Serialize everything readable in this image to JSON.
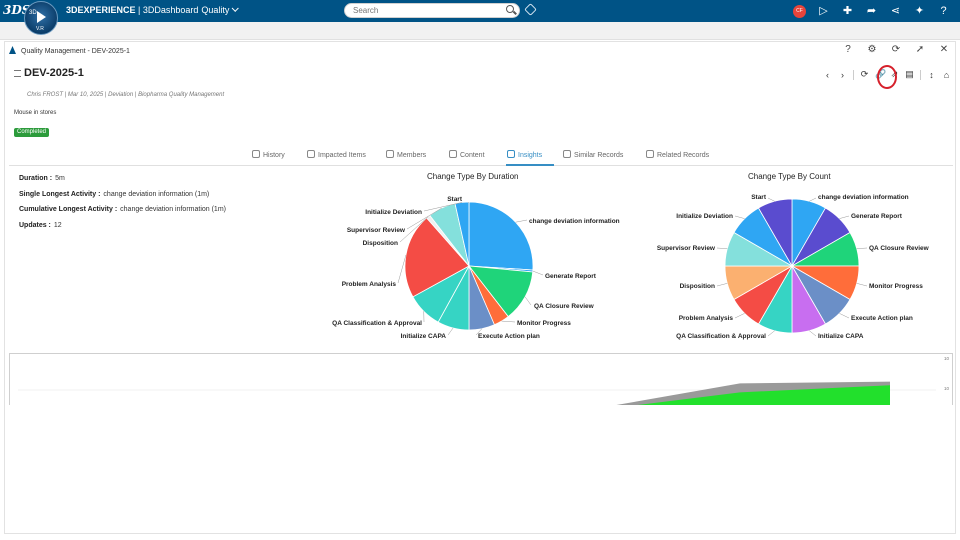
{
  "topbar": {
    "logo": "3DS",
    "compass_label": "3D",
    "compass_version": "V.R",
    "brand_bold": "3DEXPERIENCE",
    "brand_rest": " | 3DDashboard",
    "app": "Quality",
    "search_placeholder": "Search",
    "avatar": "CF"
  },
  "widget": {
    "title": "Quality Management - DEV-2025-1"
  },
  "record": {
    "id": "DEV-2025-1",
    "owner": "Chris FROST",
    "date": "Mar 10, 2025",
    "type": "Deviation",
    "org": "Biopharma Quality Management",
    "description": "Mouse in stores",
    "status": "Completed"
  },
  "tabs": [
    {
      "label": "History"
    },
    {
      "label": "Impacted Items"
    },
    {
      "label": "Members"
    },
    {
      "label": "Content"
    },
    {
      "label": "Insights"
    },
    {
      "label": "Similar Records"
    },
    {
      "label": "Related Records"
    }
  ],
  "stats": [
    {
      "key": "Duration :",
      "value": "5m"
    },
    {
      "key": "Single Longest Activity :",
      "value": "change deviation information (1m)"
    },
    {
      "key": "Cumulative Longest Activity :",
      "value": "change deviation information (1m)"
    },
    {
      "key": "Updates :",
      "value": "12"
    }
  ],
  "chart_data": [
    {
      "type": "pie",
      "title": "Change Type By Duration",
      "categories": [
        "change deviation information",
        "Generate Report",
        "QA Closure Review",
        "Monitor Progress",
        "Execute Action plan",
        "Initialize CAPA",
        "QA Classification & Approval",
        "Problem Analysis",
        "Disposition",
        "Supervisor Review",
        "Initialize Deviation",
        "Start"
      ],
      "values": [
        26,
        0.5,
        13,
        4,
        6.5,
        8,
        9,
        21.5,
        1,
        7,
        3.5,
        0
      ],
      "colors": [
        "#2fa6f3",
        "#2fa6f3",
        "#1fd47a",
        "#ff6d3a",
        "#6b8fc7",
        "#36d4c4",
        "#36d4c4",
        "#f44c45",
        "#f0f0f0",
        "#84e0dc",
        "#2fa6f3",
        "#2fa6f3"
      ]
    },
    {
      "type": "pie",
      "title": "Change Type By Count",
      "categories": [
        "change deviation information",
        "Generate Report",
        "QA Closure Review",
        "Monitor Progress",
        "Execute Action plan",
        "Initialize CAPA",
        "QA Classification & Approval",
        "Problem Analysis",
        "Disposition",
        "Supervisor Review",
        "Initialize Deviation",
        "Start"
      ],
      "values": [
        1,
        1,
        1,
        1,
        1,
        1,
        1,
        1,
        1,
        1,
        1,
        1
      ],
      "colors": [
        "#2fa6f3",
        "#5a4ccf",
        "#1fd47a",
        "#ff6d3a",
        "#6b8fc7",
        "#c86ef0",
        "#36d4c4",
        "#f44c45",
        "#fbb070",
        "#84e0dc",
        "#2fa6f3",
        "#5a4ccf"
      ]
    },
    {
      "type": "area",
      "series": [
        {
          "values": [
            0,
            8.5,
            9
          ]
        },
        {
          "values": [
            0,
            6,
            8
          ]
        }
      ],
      "colors": [
        "#9a9a9a",
        "#22e02c"
      ],
      "ytick_labels": [
        "10",
        "10"
      ]
    }
  ]
}
